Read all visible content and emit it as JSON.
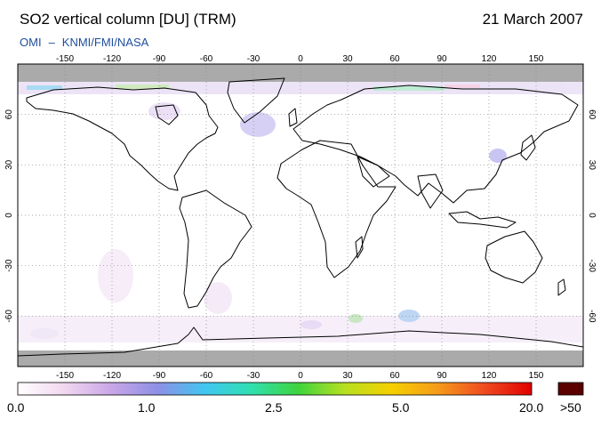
{
  "header": {
    "title": "SO2 vertical column [DU] (TRM)",
    "date": "21 March 2007",
    "credit_left": "OMI",
    "credit_dash": "–",
    "credit_right": "KNMI/FMI/NASA"
  },
  "map": {
    "lon_ticks": [
      "-150",
      "-120",
      "-90",
      "-60",
      "-30",
      "0",
      "30",
      "60",
      "90",
      "120",
      "150"
    ],
    "lat_ticks": [
      "60",
      "30",
      "0",
      "-30",
      "-60"
    ],
    "no_data_color": "#aaaaaa",
    "coastline_color": "#000000",
    "grid": "dotted"
  },
  "colorbar": {
    "labels": [
      "0.0",
      "1.0",
      "2.5",
      "5.0",
      "20.0"
    ],
    "overflow_label": ">50",
    "overflow_color": "#5a0000",
    "colors": [
      "#ffffff",
      "#f2d7ef",
      "#c9a6e8",
      "#8e8fe6",
      "#41c6f2",
      "#2fe0b0",
      "#3ed43e",
      "#b8e020",
      "#f5d000",
      "#f59a1a",
      "#ef4a20",
      "#e00000"
    ]
  }
}
